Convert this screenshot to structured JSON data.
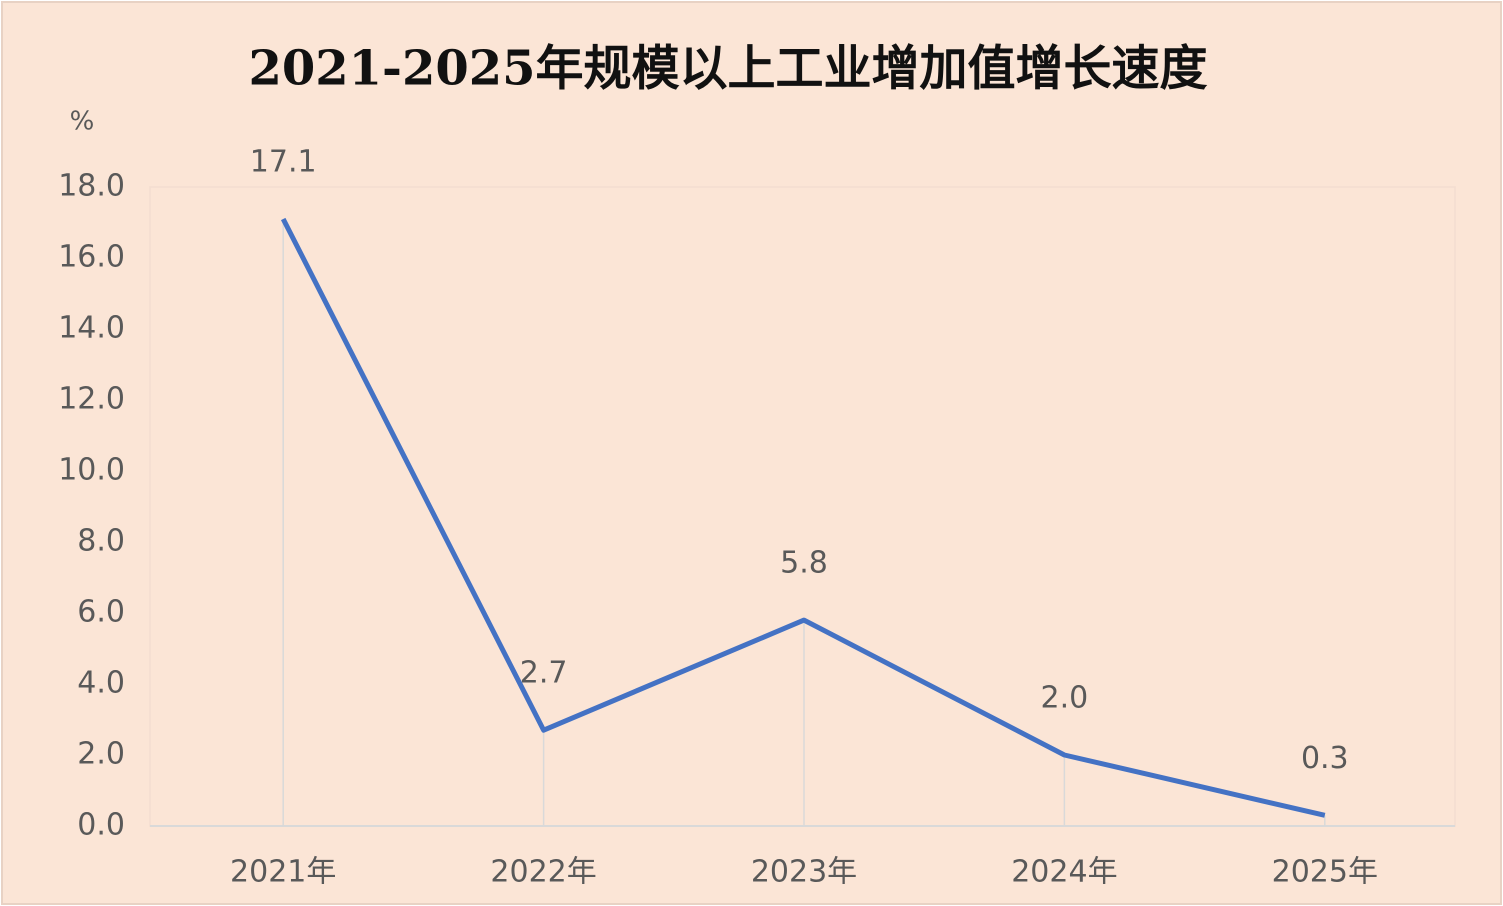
{
  "chart_data": {
    "type": "line",
    "title": "2021-2025年规模以上工业增加值增长速度",
    "y_axis_label": "%",
    "categories": [
      "2021年",
      "2022年",
      "2023年",
      "2024年",
      "2025年"
    ],
    "values": [
      17.1,
      2.7,
      5.8,
      2.0,
      0.3
    ],
    "value_labels": [
      "17.1",
      "2.7",
      "5.8",
      "2.0",
      "0.3"
    ],
    "color": "#4472c4",
    "ylim": [
      0,
      18
    ],
    "yticks": [
      {
        "value": 0,
        "label": "0.0"
      },
      {
        "value": 2,
        "label": "2.0"
      },
      {
        "value": 4,
        "label": "4.0"
      },
      {
        "value": 6,
        "label": "6.0"
      },
      {
        "value": 8,
        "label": "8.0"
      },
      {
        "value": 10,
        "label": "10.0"
      },
      {
        "value": 12,
        "label": "12.0"
      },
      {
        "value": 14,
        "label": "14.0"
      },
      {
        "value": 16,
        "label": "16.0"
      },
      {
        "value": 18,
        "label": "18.0"
      }
    ],
    "drop_lines": true
  }
}
